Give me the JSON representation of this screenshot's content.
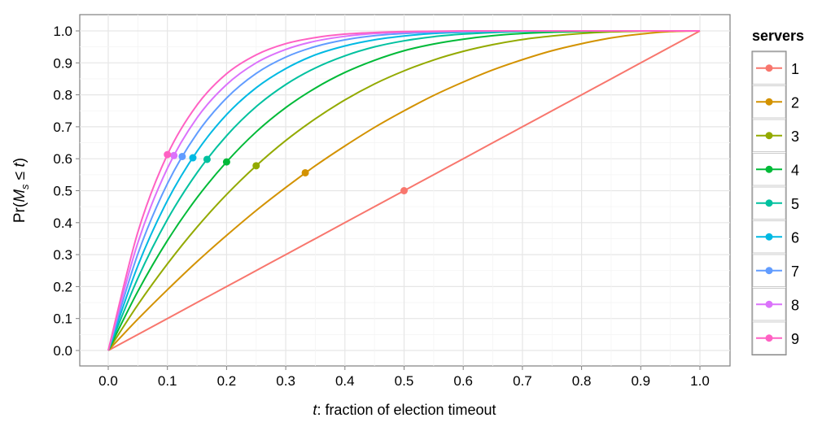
{
  "chart_data": {
    "type": "line",
    "title": "",
    "xlabel_italic": "t",
    "xlabel_rest": ": fraction of election timeout",
    "ylabel_prefix": "Pr(",
    "ylabel_var": "M",
    "ylabel_sub": "s",
    "ylabel_rel": " ≤ ",
    "ylabel_t": "t",
    "ylabel_suffix": ")",
    "xlim": [
      0,
      1
    ],
    "ylim": [
      0,
      1
    ],
    "xticks": [
      "0.0",
      "0.1",
      "0.2",
      "0.3",
      "0.4",
      "0.5",
      "0.6",
      "0.7",
      "0.8",
      "0.9",
      "1.0"
    ],
    "yticks": [
      "0.0",
      "0.1",
      "0.2",
      "0.3",
      "0.4",
      "0.5",
      "0.6",
      "0.7",
      "0.8",
      "0.9",
      "1.0"
    ],
    "grid": true,
    "legend_title": "servers",
    "legend_placement": "right",
    "x": [
      0,
      0.05,
      0.1,
      0.15,
      0.2,
      0.25,
      0.3,
      0.35,
      0.4,
      0.45,
      0.5,
      0.55,
      0.6,
      0.65,
      0.7,
      0.75,
      0.8,
      0.85,
      0.9,
      0.95,
      1
    ],
    "series": [
      {
        "name": "1",
        "color": "#F8766D",
        "values": [
          0,
          0.05,
          0.1,
          0.15,
          0.2,
          0.25,
          0.3,
          0.35,
          0.4,
          0.45,
          0.5,
          0.55,
          0.6,
          0.65,
          0.7,
          0.75,
          0.8,
          0.85,
          0.9,
          0.95,
          1
        ],
        "marker": [
          0.5,
          0.5
        ]
      },
      {
        "name": "2",
        "color": "#D39200",
        "values": [
          0,
          0.098,
          0.19,
          0.278,
          0.36,
          0.438,
          0.51,
          0.578,
          0.64,
          0.698,
          0.75,
          0.798,
          0.84,
          0.878,
          0.91,
          0.938,
          0.96,
          0.978,
          0.99,
          0.998,
          1
        ],
        "marker": [
          0.333,
          0.556
        ]
      },
      {
        "name": "3",
        "color": "#93AA00",
        "values": [
          0,
          0.143,
          0.271,
          0.386,
          0.488,
          0.578,
          0.657,
          0.725,
          0.784,
          0.834,
          0.875,
          0.909,
          0.936,
          0.957,
          0.973,
          0.984,
          0.992,
          0.997,
          0.999,
          1,
          1
        ],
        "marker": [
          0.25,
          0.578
        ]
      },
      {
        "name": "4",
        "color": "#00BA38",
        "values": [
          0,
          0.185,
          0.344,
          0.478,
          0.59,
          0.684,
          0.76,
          0.821,
          0.87,
          0.908,
          0.938,
          0.959,
          0.974,
          0.985,
          0.992,
          0.996,
          0.998,
          1,
          1,
          1,
          1
        ],
        "marker": [
          0.2,
          0.59
        ]
      },
      {
        "name": "5",
        "color": "#00C19F",
        "values": [
          0,
          0.226,
          0.41,
          0.556,
          0.672,
          0.763,
          0.832,
          0.884,
          0.922,
          0.95,
          0.969,
          0.982,
          0.99,
          0.995,
          0.998,
          0.999,
          1,
          1,
          1,
          1,
          1
        ],
        "marker": [
          0.167,
          0.598
        ]
      },
      {
        "name": "6",
        "color": "#00B9E3",
        "values": [
          0,
          0.265,
          0.469,
          0.623,
          0.738,
          0.822,
          0.882,
          0.925,
          0.953,
          0.972,
          0.984,
          0.992,
          0.996,
          0.998,
          0.999,
          1,
          1,
          1,
          1,
          1,
          1
        ],
        "marker": [
          0.143,
          0.603
        ]
      },
      {
        "name": "7",
        "color": "#619CFF",
        "values": [
          0,
          0.302,
          0.522,
          0.679,
          0.79,
          0.867,
          0.918,
          0.951,
          0.972,
          0.985,
          0.992,
          0.996,
          0.998,
          0.999,
          1,
          1,
          1,
          1,
          1,
          1,
          1
        ],
        "marker": [
          0.125,
          0.607
        ]
      },
      {
        "name": "8",
        "color": "#DB72FB",
        "values": [
          0,
          0.337,
          0.57,
          0.728,
          0.832,
          0.9,
          0.942,
          0.968,
          0.983,
          0.992,
          0.996,
          0.998,
          0.999,
          1,
          1,
          1,
          1,
          1,
          1,
          1,
          1
        ],
        "marker": [
          0.111,
          0.61
        ]
      },
      {
        "name": "9",
        "color": "#FF61C3",
        "values": [
          0,
          0.37,
          0.613,
          0.768,
          0.866,
          0.925,
          0.96,
          0.979,
          0.99,
          0.995,
          0.998,
          0.999,
          1,
          1,
          1,
          1,
          1,
          1,
          1,
          1,
          1
        ],
        "marker": [
          0.1,
          0.613
        ]
      }
    ]
  }
}
